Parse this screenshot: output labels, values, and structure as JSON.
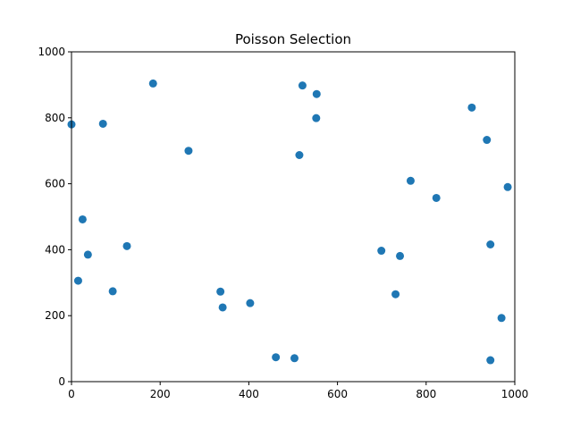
{
  "chart_data": {
    "type": "scatter",
    "title": "Poisson Selection",
    "xlabel": "",
    "ylabel": "",
    "xlim": [
      0,
      1000
    ],
    "ylim": [
      0,
      1000
    ],
    "xticks": [
      0,
      200,
      400,
      600,
      800,
      1000
    ],
    "yticks": [
      0,
      200,
      400,
      600,
      800,
      1000
    ],
    "grid": false,
    "marker_color": "#1f77b4",
    "series": [
      {
        "points": [
          [
            0,
            780
          ],
          [
            71,
            782
          ],
          [
            184,
            904
          ],
          [
            264,
            700
          ],
          [
            521,
            898
          ],
          [
            553,
            872
          ],
          [
            552,
            799
          ],
          [
            514,
            687
          ],
          [
            903,
            831
          ],
          [
            937,
            733
          ],
          [
            765,
            609
          ],
          [
            823,
            557
          ],
          [
            984,
            590
          ],
          [
            25,
            492
          ],
          [
            37,
            385
          ],
          [
            125,
            411
          ],
          [
            15,
            306
          ],
          [
            93,
            274
          ],
          [
            336,
            273
          ],
          [
            341,
            225
          ],
          [
            403,
            238
          ],
          [
            699,
            397
          ],
          [
            741,
            381
          ],
          [
            945,
            416
          ],
          [
            731,
            265
          ],
          [
            970,
            193
          ],
          [
            461,
            74
          ],
          [
            503,
            71
          ],
          [
            945,
            65
          ]
        ]
      }
    ]
  }
}
